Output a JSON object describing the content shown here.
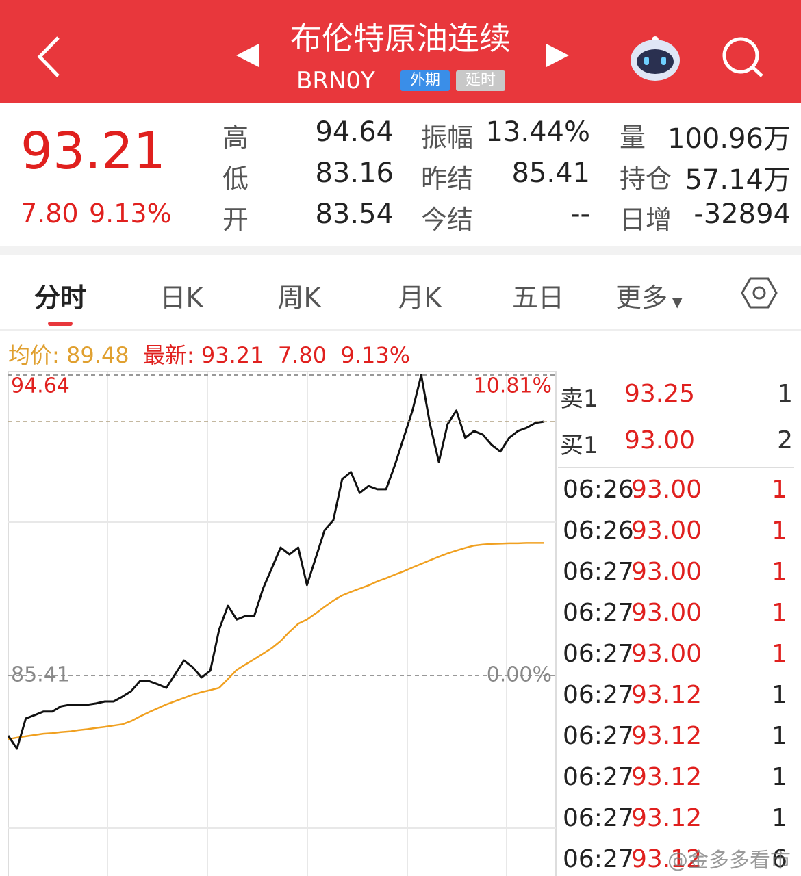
{
  "header": {
    "title": "布伦特原油连续",
    "code": "BRN0Y",
    "tags": [
      "外期",
      "延时"
    ]
  },
  "quote": {
    "price": "93.21",
    "change": "7.80",
    "change_pct": "9.13%",
    "stats": [
      {
        "label": "高",
        "value": "94.64"
      },
      {
        "label": "低",
        "value": "83.16"
      },
      {
        "label": "开",
        "value": "83.54"
      },
      {
        "label": "振幅",
        "value": "13.44%"
      },
      {
        "label": "昨结",
        "value": "85.41"
      },
      {
        "label": "今结",
        "value": "--"
      },
      {
        "label": "量",
        "value": "100.96万"
      },
      {
        "label": "持仓",
        "value": "57.14万"
      },
      {
        "label": "日增",
        "value": "-32894"
      }
    ]
  },
  "tabs": [
    "分时",
    "日K",
    "周K",
    "月K",
    "五日",
    "更多"
  ],
  "chart_data": {
    "type": "line",
    "legend_values": [
      [
        "89.48"
      ],
      [
        "93.21",
        "7.80",
        "9.13%"
      ]
    ],
    "series": [
      {
        "name": "均价:",
        "color": "#f0a020",
        "values": [
          83.45,
          83.5,
          83.54,
          83.58,
          83.62,
          83.64,
          83.67,
          83.69,
          83.73,
          83.76,
          83.8,
          83.83,
          83.87,
          83.91,
          84.01,
          84.15,
          84.28,
          84.4,
          84.52,
          84.62,
          84.72,
          84.82,
          84.9,
          84.96,
          85.03,
          85.3,
          85.58,
          85.75,
          85.91,
          86.08,
          86.25,
          86.47,
          86.75,
          87.0,
          87.13,
          87.32,
          87.52,
          87.71,
          87.87,
          87.98,
          88.08,
          88.18,
          88.3,
          88.4,
          88.51,
          88.61,
          88.73,
          88.84,
          88.95,
          89.06,
          89.16,
          89.25,
          89.33,
          89.4,
          89.43,
          89.45,
          89.46,
          89.47,
          89.47,
          89.48,
          89.48,
          89.48
        ]
      },
      {
        "name": "最新:",
        "color": "#111111",
        "values": [
          83.56,
          83.16,
          84.09,
          84.19,
          84.3,
          84.3,
          84.46,
          84.51,
          84.51,
          84.51,
          84.55,
          84.61,
          84.61,
          84.76,
          84.93,
          85.24,
          85.24,
          85.14,
          85.03,
          85.45,
          85.87,
          85.66,
          85.35,
          85.56,
          86.82,
          87.55,
          87.13,
          87.24,
          87.24,
          88.08,
          88.71,
          89.34,
          89.13,
          89.34,
          88.19,
          89.03,
          89.87,
          90.18,
          91.44,
          91.66,
          91.02,
          91.23,
          91.13,
          91.13,
          91.87,
          92.71,
          93.55,
          94.64,
          93.13,
          91.97,
          93.13,
          93.55,
          92.71,
          92.92,
          92.81,
          92.5,
          92.29,
          92.71,
          92.92,
          93.02,
          93.17,
          93.21
        ]
      }
    ],
    "ylim": [
      76.18,
      94.64
    ],
    "yticks": [
      94.64,
      85.41
    ],
    "y2lim": [
      -10.81,
      10.81
    ],
    "y2ticks": [
      {
        "value": 10.81,
        "label": "10.81%"
      },
      {
        "value": 0,
        "label": "0.00%"
      }
    ],
    "grid": true,
    "latest_line": true
  },
  "order_book": [
    {
      "label": "卖1",
      "price": "93.25",
      "volume": "1"
    },
    {
      "label": "买1",
      "price": "93.00",
      "volume": "2"
    }
  ],
  "trades": [
    [
      "06:26",
      "93.00",
      "1"
    ],
    [
      "06:26",
      "93.00",
      "1"
    ],
    [
      "06:27",
      "93.00",
      "1"
    ],
    [
      "06:27",
      "93.00",
      "1"
    ],
    [
      "06:27",
      "93.00",
      "1"
    ],
    [
      "06:27",
      "93.12",
      "1"
    ],
    [
      "06:27",
      "93.12",
      "1"
    ],
    [
      "06:27",
      "93.12",
      "1"
    ],
    [
      "06:27",
      "93.12",
      "1"
    ],
    [
      "06:27",
      "93.12",
      "6"
    ]
  ],
  "watermark": "@金多多看市"
}
